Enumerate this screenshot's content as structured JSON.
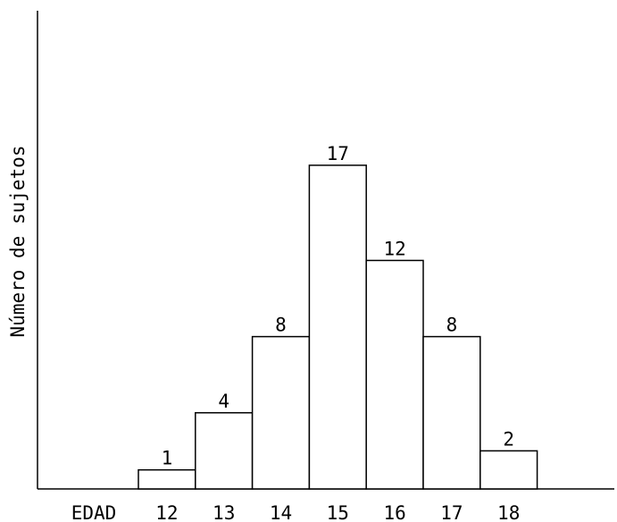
{
  "chart_data": {
    "type": "bar",
    "title": "",
    "xlabel": "EDAD",
    "ylabel": "Número de sujetos",
    "categories": [
      "12",
      "13",
      "14",
      "15",
      "16",
      "17",
      "18"
    ],
    "values": [
      1,
      4,
      8,
      17,
      12,
      8,
      2
    ],
    "data_labels": [
      "1",
      "4",
      "8",
      "17",
      "12",
      "8",
      "2"
    ],
    "grid": false,
    "legend": "none"
  }
}
